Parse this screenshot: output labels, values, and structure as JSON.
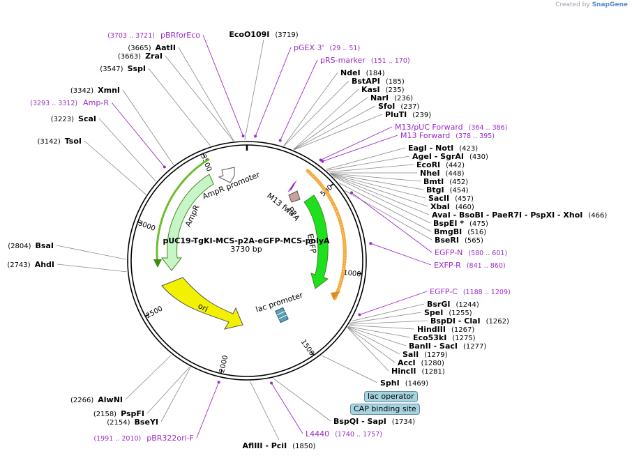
{
  "credit": {
    "prefix": "Created by",
    "brand": "SnapGene"
  },
  "plasmid": {
    "name": "pUC19-TgKI-MCS-p2A-eGFP-MCS-polyA",
    "size_label": "3730 bp",
    "length": 3730
  },
  "ruler_ticks": [
    "500",
    "1000",
    "1500",
    "2000",
    "2500",
    "3000",
    "3500"
  ],
  "features": {
    "ampr_promoter": "AmpR promoter",
    "ampr": "AmpR",
    "ori": "ori",
    "lac_promoter": "lac promoter",
    "p2a": "P2A",
    "egfp": "EGFP",
    "m13_fwd": "M13 fwd"
  },
  "tags": {
    "lac_operator": "lac operator",
    "cap_site": "CAP binding site"
  },
  "enzymes": [
    {
      "pos": 3719,
      "name": "EcoO109I",
      "pos_label": "(3719)"
    },
    {
      "pos": 3665,
      "name": "AatII",
      "pos_label": "(3665)"
    },
    {
      "pos": 3663,
      "name": "ZraI",
      "pos_label": "(3663)"
    },
    {
      "pos": 3547,
      "name": "SspI",
      "pos_label": "(3547)"
    },
    {
      "pos": 3342,
      "name": "XmnI",
      "pos_label": "(3342)"
    },
    {
      "pos": 3223,
      "name": "ScaI",
      "pos_label": "(3223)"
    },
    {
      "pos": 3142,
      "name": "TsoI",
      "pos_label": "(3142)"
    },
    {
      "pos": 2804,
      "name": "BsaI",
      "pos_label": "(2804)"
    },
    {
      "pos": 2743,
      "name": "AhdI",
      "pos_label": "(2743)"
    },
    {
      "pos": 2266,
      "name": "AlwNI",
      "pos_label": "(2266)"
    },
    {
      "pos": 2158,
      "name": "PspFI",
      "pos_label": "(2158)"
    },
    {
      "pos": 2154,
      "name": "BseYI",
      "pos_label": "(2154)"
    },
    {
      "pos": 1850,
      "name": "AflIII  -  PciI",
      "pos_label": "(1850)"
    },
    {
      "pos": 1734,
      "name": "BspQI  -  SapI",
      "pos_label": "(1734)"
    },
    {
      "pos": 1469,
      "name": "SphI",
      "pos_label": "(1469)"
    },
    {
      "pos": 1281,
      "name": "HincII",
      "pos_label": "(1281)"
    },
    {
      "pos": 1280,
      "name": "AccI",
      "pos_label": "(1280)"
    },
    {
      "pos": 1279,
      "name": "SalI",
      "pos_label": "(1279)"
    },
    {
      "pos": 1277,
      "name": "BanII  -  SacI",
      "pos_label": "(1277)"
    },
    {
      "pos": 1275,
      "name": "Eco53kI",
      "pos_label": "(1275)"
    },
    {
      "pos": 1267,
      "name": "HindIII",
      "pos_label": "(1267)"
    },
    {
      "pos": 1262,
      "name": "BspDI  -  ClaI",
      "pos_label": "(1262)"
    },
    {
      "pos": 1255,
      "name": "SpeI",
      "pos_label": "(1255)"
    },
    {
      "pos": 1244,
      "name": "BsrGI",
      "pos_label": "(1244)"
    },
    {
      "pos": 184,
      "name": "NdeI",
      "pos_label": "(184)"
    },
    {
      "pos": 185,
      "name": "BstAPI",
      "pos_label": "(185)"
    },
    {
      "pos": 235,
      "name": "KasI",
      "pos_label": "(235)"
    },
    {
      "pos": 236,
      "name": "NarI",
      "pos_label": "(236)"
    },
    {
      "pos": 237,
      "name": "SfoI",
      "pos_label": "(237)"
    },
    {
      "pos": 239,
      "name": "PluTI",
      "pos_label": "(239)"
    },
    {
      "pos": 423,
      "name": "EagI  -  NotI",
      "pos_label": "(423)"
    },
    {
      "pos": 430,
      "name": "AgeI  -  SgrAI",
      "pos_label": "(430)"
    },
    {
      "pos": 442,
      "name": "EcoRI",
      "pos_label": "(442)"
    },
    {
      "pos": 448,
      "name": "NheI",
      "pos_label": "(448)"
    },
    {
      "pos": 452,
      "name": "BmtI",
      "pos_label": "(452)"
    },
    {
      "pos": 454,
      "name": "BtgI",
      "pos_label": "(454)"
    },
    {
      "pos": 457,
      "name": "SacII",
      "pos_label": "(457)"
    },
    {
      "pos": 460,
      "name": "XbaI",
      "pos_label": "(460)"
    },
    {
      "pos": 466,
      "name": "AvaI  -  BsoBI    -  PaeR7I    -  PspXI   -  XhoI",
      "pos_label": "(466)"
    },
    {
      "pos": 475,
      "name": "BspEI  *",
      "pos_label": "(475)"
    },
    {
      "pos": 516,
      "name": "BmgBI",
      "pos_label": "(516)"
    },
    {
      "pos": 565,
      "name": "BseRI",
      "pos_label": "(565)"
    }
  ],
  "primers": [
    {
      "name": "pBRforEco",
      "range": "(3703 .. 3721)",
      "mid": 3712
    },
    {
      "name": "pGEX 3'",
      "range": "(29 .. 51)",
      "mid": 40
    },
    {
      "name": "pRS-marker",
      "range": "(151 .. 170)",
      "mid": 160
    },
    {
      "name": "M13/pUC Forward",
      "range": "(364 .. 386)",
      "mid": 375
    },
    {
      "name": "M13 Forward",
      "range": "(378 .. 395)",
      "mid": 386
    },
    {
      "name": "EGFP-N",
      "range": "(580 .. 601)",
      "mid": 590
    },
    {
      "name": "EXFP-R",
      "range": "(841 .. 860)",
      "mid": 850
    },
    {
      "name": "EGFP-C",
      "range": "(1188 .. 1209)",
      "mid": 1198
    },
    {
      "name": "L4440",
      "range": "(1740 .. 1757)",
      "mid": 1748
    },
    {
      "name": "pBR322ori-F",
      "range": "(1991 .. 2010)",
      "mid": 2000
    },
    {
      "name": "Amp-R",
      "range": "(3293 .. 3312)",
      "mid": 3302
    }
  ],
  "colors": {
    "primer": "#9a2bc9",
    "line": "#888888",
    "egfp": "#1fe01f",
    "ampr": "#c8f5c8",
    "ori": "#f2f200",
    "orange": "#f4a93b",
    "green_arc": "#6dbe2c"
  }
}
